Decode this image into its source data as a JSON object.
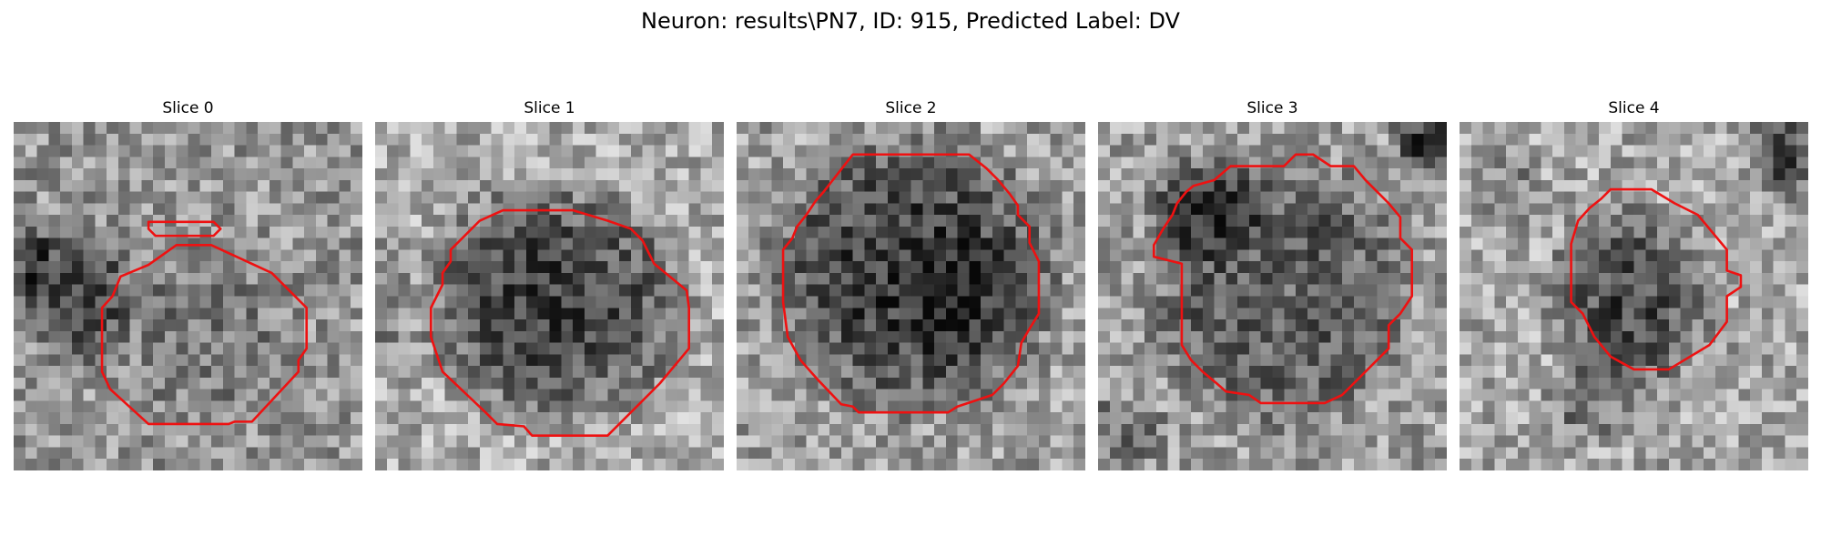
{
  "figure": {
    "title": "Neuron: results\\PN7, ID: 915, Predicted Label: DV"
  },
  "slices": [
    {
      "title": "Slice 0"
    },
    {
      "title": "Slice 1"
    },
    {
      "title": "Slice 2"
    },
    {
      "title": "Slice 3"
    },
    {
      "title": "Slice 4"
    }
  ],
  "colors": {
    "contour": "#ee1111",
    "background": "#ffffff"
  }
}
